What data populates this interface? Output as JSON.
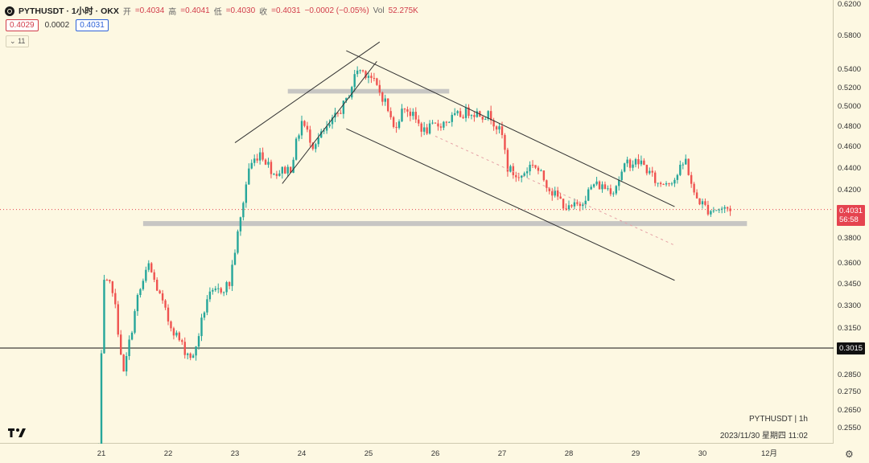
{
  "header": {
    "symbol": "PYTHUSDT · 1小时 · OKX",
    "open_label": "开",
    "open": "=0.4034",
    "high_label": "高",
    "high": "=0.4041",
    "low_label": "低",
    "low": "=0.4030",
    "close_label": "收",
    "close": "=0.4031",
    "change": "−0.0002 (−0.05%)",
    "vol_label": "Vol",
    "vol": "52.275K",
    "sell_price": "0.4029",
    "spread": "0.0002",
    "buy_price": "0.4031",
    "indicator_count": "11"
  },
  "watermark": {
    "line1": "PYTHUSDT | 1h",
    "line2": "2023/11/30 星期四 11:02"
  },
  "price_tags": {
    "last_price": "0.4031",
    "countdown": "56:58",
    "horizontal_line": "0.3015",
    "last_color": "#e5434f",
    "line_color": "#111111"
  },
  "colors": {
    "up": "#26a69a",
    "down": "#ef5350",
    "background": "#fdf8e2",
    "zone": "#bdbdbd"
  },
  "chart_data": {
    "type": "candlestick",
    "title": "PYTHUSDT · 1小时 · OKX",
    "y_scale": "log",
    "y_ticks": [
      "0.6200",
      "0.5800",
      "0.5400",
      "0.5200",
      "0.5000",
      "0.4800",
      "0.4600",
      "0.4400",
      "0.4200",
      "0.3800",
      "0.3600",
      "0.3450",
      "0.3300",
      "0.3150",
      "0.3015",
      "0.2850",
      "0.2750",
      "0.2650",
      "0.2550"
    ],
    "x_ticks": [
      "21",
      "22",
      "23",
      "24",
      "25",
      "26",
      "27",
      "28",
      "29",
      "30",
      "12月"
    ],
    "x_tick_dates": [
      "2023-11-21",
      "2023-11-22",
      "2023-11-23",
      "2023-11-24",
      "2023-11-25",
      "2023-11-26",
      "2023-11-27",
      "2023-11-28",
      "2023-11-29",
      "2023-11-30",
      "2023-12-01"
    ],
    "ylim": [
      0.24,
      0.625
    ],
    "last_price": 0.4031,
    "horizontal_line": 0.3015,
    "support_zone": [
      0.3895,
      0.3935
    ],
    "resistance_zone": [
      0.5135,
      0.5185
    ],
    "path_anchors": [
      {
        "t": "2023-11-20 23:00",
        "p": 0.245
      },
      {
        "t": "2023-11-21 01:00",
        "p": 0.345
      },
      {
        "t": "2023-11-21 04:00",
        "p": 0.342
      },
      {
        "t": "2023-11-21 08:00",
        "p": 0.285
      },
      {
        "t": "2023-11-21 13:00",
        "p": 0.335
      },
      {
        "t": "2023-11-21 17:00",
        "p": 0.358
      },
      {
        "t": "2023-11-22 00:00",
        "p": 0.32
      },
      {
        "t": "2023-11-22 06:00",
        "p": 0.3
      },
      {
        "t": "2023-11-22 09:00",
        "p": 0.295
      },
      {
        "t": "2023-11-22 14:00",
        "p": 0.335
      },
      {
        "t": "2023-11-22 22:00",
        "p": 0.345
      },
      {
        "t": "2023-11-23 02:00",
        "p": 0.395
      },
      {
        "t": "2023-11-23 05:00",
        "p": 0.44
      },
      {
        "t": "2023-11-23 09:00",
        "p": 0.455
      },
      {
        "t": "2023-11-23 14:00",
        "p": 0.435
      },
      {
        "t": "2023-11-23 20:00",
        "p": 0.44
      },
      {
        "t": "2023-11-24 00:00",
        "p": 0.485
      },
      {
        "t": "2023-11-24 04:00",
        "p": 0.462
      },
      {
        "t": "2023-11-24 10:00",
        "p": 0.48
      },
      {
        "t": "2023-11-24 16:00",
        "p": 0.505
      },
      {
        "t": "2023-11-24 20:00",
        "p": 0.54
      },
      {
        "t": "2023-11-25 00:00",
        "p": 0.535
      },
      {
        "t": "2023-11-25 06:00",
        "p": 0.505
      },
      {
        "t": "2023-11-25 09:00",
        "p": 0.478
      },
      {
        "t": "2023-11-25 13:00",
        "p": 0.5
      },
      {
        "t": "2023-11-25 20:00",
        "p": 0.475
      },
      {
        "t": "2023-11-26 04:00",
        "p": 0.485
      },
      {
        "t": "2023-11-26 12:00",
        "p": 0.495
      },
      {
        "t": "2023-11-26 20:00",
        "p": 0.49
      },
      {
        "t": "2023-11-27 00:00",
        "p": 0.47
      },
      {
        "t": "2023-11-27 02:00",
        "p": 0.44
      },
      {
        "t": "2023-11-27 06:00",
        "p": 0.43
      },
      {
        "t": "2023-11-27 11:00",
        "p": 0.445
      },
      {
        "t": "2023-11-27 18:00",
        "p": 0.418
      },
      {
        "t": "2023-11-28 00:00",
        "p": 0.403
      },
      {
        "t": "2023-11-28 04:00",
        "p": 0.408
      },
      {
        "t": "2023-11-28 09:00",
        "p": 0.425
      },
      {
        "t": "2023-11-28 16:00",
        "p": 0.42
      },
      {
        "t": "2023-11-28 21:00",
        "p": 0.445
      },
      {
        "t": "2023-11-29 02:00",
        "p": 0.445
      },
      {
        "t": "2023-11-29 08:00",
        "p": 0.425
      },
      {
        "t": "2023-11-29 14:00",
        "p": 0.43
      },
      {
        "t": "2023-11-29 18:00",
        "p": 0.447
      },
      {
        "t": "2023-11-29 21:00",
        "p": 0.415
      },
      {
        "t": "2023-11-30 02:00",
        "p": 0.403
      },
      {
        "t": "2023-11-30 10:00",
        "p": 0.404
      }
    ],
    "trend_lines": [
      {
        "from": {
          "t": "2023-11-23 00:00",
          "p": 0.4635
        },
        "to": {
          "t": "2023-11-25 04:00",
          "p": 0.572
        },
        "style": "solid"
      },
      {
        "from": {
          "t": "2023-11-23 17:00",
          "p": 0.4255
        },
        "to": {
          "t": "2023-11-25 03:00",
          "p": 0.549
        },
        "style": "solid"
      },
      {
        "from": {
          "t": "2023-11-24 16:00",
          "p": 0.5615
        },
        "to": {
          "t": "2023-11-29 14:00",
          "p": 0.4055
        },
        "style": "solid"
      },
      {
        "from": {
          "t": "2023-11-24 16:00",
          "p": 0.4775
        },
        "to": {
          "t": "2023-11-29 14:00",
          "p": 0.3474
        },
        "style": "solid"
      },
      {
        "from": {
          "t": "2023-11-26 00:00",
          "p": 0.47
        },
        "to": {
          "t": "2023-11-29 14:00",
          "p": 0.374
        },
        "style": "dashed"
      }
    ],
    "series": [
      {
        "name": "PYTHUSDT",
        "interval": "1h"
      }
    ],
    "grid": false
  }
}
